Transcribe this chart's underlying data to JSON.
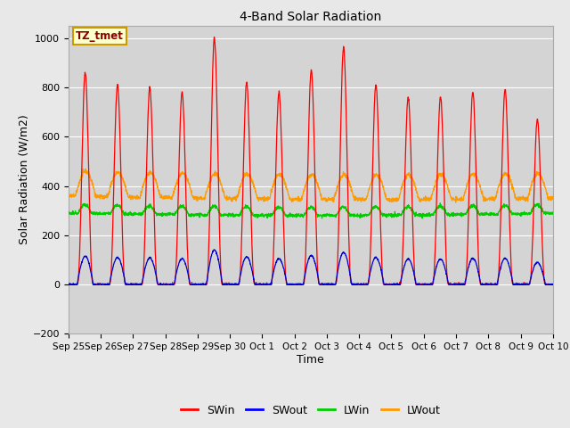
{
  "title": "4-Band Solar Radiation",
  "xlabel": "Time",
  "ylabel": "Solar Radiation (W/m2)",
  "ylim": [
    -200,
    1050
  ],
  "yticks": [
    -200,
    0,
    200,
    400,
    600,
    800,
    1000
  ],
  "background_color": "#e8e8e8",
  "plot_bg_color": "#d4d4d4",
  "annotation_text": "TZ_tmet",
  "annotation_bg": "#ffffcc",
  "annotation_border": "#cc9900",
  "legend_entries": [
    "SWin",
    "SWout",
    "LWin",
    "LWout"
  ],
  "legend_colors": [
    "#ff0000",
    "#0000ff",
    "#00cc00",
    "#ff9900"
  ],
  "colors": {
    "SWin": "#ff0000",
    "SWout": "#0000cc",
    "LWin": "#00cc00",
    "LWout": "#ff9900"
  },
  "n_days": 15,
  "x_tick_labels": [
    "Sep 25",
    "Sep 26",
    "Sep 27",
    "Sep 28",
    "Sep 29",
    "Sep 30",
    "Oct 1",
    "Oct 2",
    "Oct 3",
    "Oct 4",
    "Oct 5",
    "Oct 6",
    "Oct 7",
    "Oct 8",
    "Oct 9",
    "Oct 10"
  ],
  "SWin_peaks": [
    860,
    810,
    800,
    780,
    1000,
    820,
    780,
    870,
    960,
    810,
    760,
    760,
    780,
    790,
    670
  ],
  "SWout_peaks": [
    115,
    110,
    108,
    105,
    140,
    112,
    105,
    118,
    130,
    110,
    103,
    103,
    106,
    107,
    90
  ],
  "LWin_base": 290,
  "LWout_base": 360,
  "LWout_day_bump": 100,
  "LWin_day_bump": 35
}
